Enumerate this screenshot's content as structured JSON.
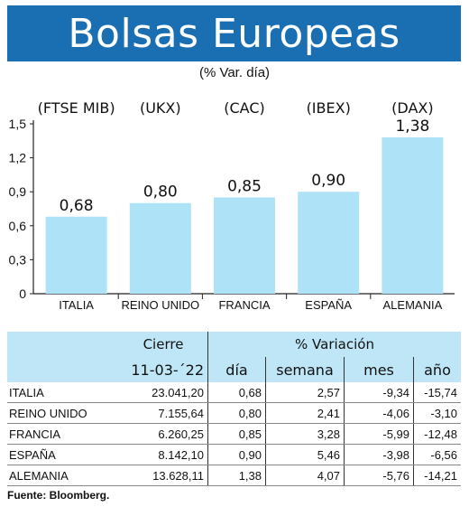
{
  "header": {
    "title": "Bolsas Europeas",
    "subtitle": "(% Var. día)"
  },
  "colors": {
    "title_bg": "#1a6fb3",
    "bar": "#aee3f7",
    "table_header_bg": "#bfe6f7"
  },
  "chart_data": {
    "type": "bar",
    "categories": [
      "ITALIA",
      "REINO UNIDO",
      "FRANCIA",
      "ESPAÑA",
      "ALEMANIA"
    ],
    "index_labels": [
      "(FTSE MIB)",
      "(UKX)",
      "(CAC)",
      "(IBEX)",
      "(DAX)"
    ],
    "values": [
      0.68,
      0.8,
      0.85,
      0.9,
      1.38
    ],
    "value_labels": [
      "0,68",
      "0,80",
      "0,85",
      "0,90",
      "1,38"
    ],
    "yticks": [
      "0",
      "0,3",
      "0,6",
      "0,9",
      "1,2",
      "1,5"
    ],
    "ylim": [
      0,
      1.5
    ],
    "grid": false
  },
  "table": {
    "group_headers": {
      "cierre": "Cierre",
      "variacion": "% Variación"
    },
    "sub_headers": {
      "date": "11-03-´22",
      "dia": "día",
      "semana": "semana",
      "mes": "mes",
      "anio": "año"
    },
    "rows": [
      {
        "name": "ITALIA",
        "cierre": "23.041,20",
        "dia": "0,68",
        "semana": "2,57",
        "mes": "-9,34",
        "anio": "-15,74"
      },
      {
        "name": "REINO UNIDO",
        "cierre": "7.155,64",
        "dia": "0,80",
        "semana": "2,41",
        "mes": "-4,06",
        "anio": "-3,10"
      },
      {
        "name": "FRANCIA",
        "cierre": "6.260,25",
        "dia": "0,85",
        "semana": "3,28",
        "mes": "-5,99",
        "anio": "-12,48"
      },
      {
        "name": "ESPAÑA",
        "cierre": "8.142,10",
        "dia": "0,90",
        "semana": "5,46",
        "mes": "-3,98",
        "anio": "-6,56"
      },
      {
        "name": "ALEMANIA",
        "cierre": "13.628,11",
        "dia": "1,38",
        "semana": "4,07",
        "mes": "-5,76",
        "anio": "-14,21"
      }
    ]
  },
  "footer": {
    "source": "Fuente: Bloomberg."
  }
}
